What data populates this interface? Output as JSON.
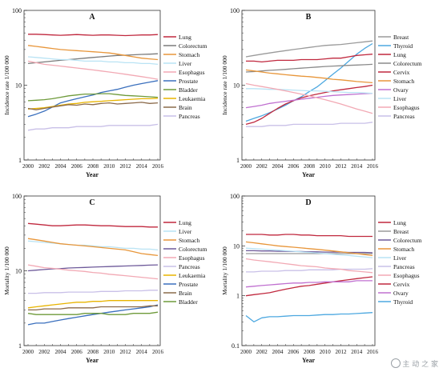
{
  "chart_data": [
    {
      "type": "line",
      "title": "A",
      "xlabel": "Year",
      "ylabel": "Incidence rate 1/100 000",
      "yscale": "log",
      "ylim": [
        1,
        100
      ],
      "x": [
        2000,
        2001,
        2002,
        2003,
        2004,
        2005,
        2006,
        2007,
        2008,
        2009,
        2010,
        2011,
        2012,
        2013,
        2014,
        2015,
        2016
      ],
      "x_ticks": [
        "2000",
        "2002",
        "2004",
        "2006",
        "2008",
        "2010",
        "2012",
        "2014",
        "2016"
      ],
      "y_ticks": [
        "1",
        "10",
        "100"
      ],
      "legend_position": "right",
      "series": [
        {
          "name": "Lung",
          "color": "#c0283e",
          "values": [
            48,
            48,
            47.5,
            47,
            46.5,
            47,
            47.5,
            47,
            46.5,
            47,
            47,
            46.5,
            46,
            46.5,
            47,
            47,
            47.5
          ]
        },
        {
          "name": "Colorectum",
          "color": "#7a7a7a",
          "values": [
            19.5,
            20,
            20.5,
            21,
            21.5,
            22,
            22.5,
            23,
            23.5,
            24,
            24.5,
            25,
            25.2,
            25.5,
            25.8,
            26,
            26.3
          ]
        },
        {
          "name": "Stomach",
          "color": "#e8963a",
          "values": [
            34,
            33,
            32,
            31,
            30,
            29.5,
            29,
            28.5,
            28,
            27.5,
            27,
            26,
            25,
            24,
            23,
            22.5,
            22
          ]
        },
        {
          "name": "Liver",
          "color": "#b9e3f4",
          "values": [
            24,
            23.5,
            23,
            22.5,
            22,
            22,
            21.5,
            21,
            21,
            21,
            20.5,
            20.5,
            20,
            20,
            19.5,
            19.5,
            19
          ]
        },
        {
          "name": "Esophagus",
          "color": "#f2a9b4",
          "values": [
            21,
            20,
            19,
            18.5,
            18,
            17.5,
            17,
            16.5,
            16,
            15.5,
            15,
            14.5,
            14,
            13.5,
            13,
            12.5,
            12
          ]
        },
        {
          "name": "Prostate",
          "color": "#3a6fbd",
          "values": [
            3.8,
            4.1,
            4.5,
            5.1,
            5.8,
            6.2,
            6.6,
            7,
            7.4,
            8,
            8.4,
            8.8,
            9.4,
            10,
            10.5,
            11,
            11.5
          ]
        },
        {
          "name": "Bladder",
          "color": "#6e9a3a",
          "values": [
            6.2,
            6.3,
            6.4,
            6.6,
            6.9,
            7.2,
            7.4,
            7.6,
            7.6,
            7.7,
            7.7,
            7.5,
            7.3,
            7.2,
            7.1,
            7,
            6.9
          ]
        },
        {
          "name": "Leukaemia",
          "color": "#e8b400",
          "values": [
            4.8,
            4.9,
            5,
            5.2,
            5.4,
            5.6,
            5.7,
            5.9,
            6,
            6.1,
            6.2,
            6.3,
            6.4,
            6.5,
            6.6,
            6.6,
            6.7
          ]
        },
        {
          "name": "Brain",
          "color": "#8b6a4a",
          "values": [
            4.9,
            4.7,
            4.9,
            5.1,
            5.3,
            5.5,
            5.4,
            5.6,
            5.5,
            5.7,
            5.8,
            5.6,
            5.7,
            5.8,
            5.9,
            5.7,
            5.8
          ]
        },
        {
          "name": "Pancreas",
          "color": "#c9c0e8",
          "values": [
            2.5,
            2.6,
            2.6,
            2.7,
            2.7,
            2.7,
            2.8,
            2.8,
            2.8,
            2.8,
            2.9,
            2.9,
            2.9,
            2.9,
            2.9,
            2.9,
            3.0
          ]
        }
      ]
    },
    {
      "type": "line",
      "title": "B",
      "xlabel": "Year",
      "ylabel": "Incidence rate 1/100 000",
      "yscale": "log",
      "ylim": [
        1,
        100
      ],
      "x": [
        2000,
        2001,
        2002,
        2003,
        2004,
        2005,
        2006,
        2007,
        2008,
        2009,
        2010,
        2011,
        2012,
        2013,
        2014,
        2015,
        2016
      ],
      "x_ticks": [
        "2000",
        "2002",
        "2004",
        "2006",
        "2008",
        "2010",
        "2012",
        "2014",
        "2016"
      ],
      "y_ticks": [
        "1",
        "10",
        "100"
      ],
      "legend_position": "right",
      "series": [
        {
          "name": "Breast",
          "color": "#9a9a9a",
          "values": [
            24,
            25,
            26,
            27,
            28,
            29,
            30,
            31,
            32,
            33,
            34,
            34.5,
            35,
            36,
            37,
            38,
            39
          ]
        },
        {
          "name": "Thyroid",
          "color": "#4da8e0",
          "values": [
            3.3,
            3.6,
            3.9,
            4.3,
            4.8,
            5.4,
            6.2,
            7,
            8.2,
            9.5,
            11.5,
            14,
            17,
            21,
            26,
            31,
            36
          ]
        },
        {
          "name": "Lung",
          "color": "#c0283e",
          "values": [
            21,
            21,
            20.5,
            21,
            21.5,
            21.5,
            21.5,
            22,
            22,
            22,
            22.5,
            23,
            23,
            24,
            25,
            25.5,
            26
          ]
        },
        {
          "name": "Colorectum",
          "color": "#8a8a8a",
          "values": [
            15,
            15.2,
            15.5,
            15.8,
            16,
            16.3,
            16.6,
            16.9,
            17.2,
            17.5,
            17.8,
            18,
            18.2,
            18.4,
            18.6,
            18.8,
            19
          ]
        },
        {
          "name": "Cervix",
          "color": "#c0283e",
          "values": [
            3,
            3.2,
            3.6,
            4.2,
            4.9,
            5.6,
            6.2,
            6.8,
            7.2,
            7.6,
            8,
            8.4,
            8.7,
            9,
            9.3,
            9.6,
            10
          ]
        },
        {
          "name": "Stomach",
          "color": "#e8963a",
          "values": [
            16,
            15.5,
            15,
            14.5,
            14.2,
            13.8,
            13.5,
            13.2,
            13,
            12.7,
            12.4,
            12,
            11.8,
            11.5,
            11.2,
            11,
            10.8
          ]
        },
        {
          "name": "Ovary",
          "color": "#c070d0",
          "values": [
            5,
            5.2,
            5.4,
            5.7,
            5.9,
            6.1,
            6.3,
            6.5,
            6.7,
            6.9,
            7.1,
            7.3,
            7.4,
            7.5,
            7.6,
            7.7,
            7.8
          ]
        },
        {
          "name": "Liver",
          "color": "#b9e3f4",
          "values": [
            9,
            9,
            8.9,
            8.8,
            8.8,
            8.7,
            8.6,
            8.5,
            8.4,
            8.4,
            8.3,
            8.2,
            8.1,
            8,
            8,
            7.9,
            7.8
          ]
        },
        {
          "name": "Esophagus",
          "color": "#f2a9b4",
          "values": [
            10.5,
            10,
            9.6,
            9.2,
            8.8,
            8.4,
            8,
            7.6,
            7.2,
            6.8,
            6.4,
            6,
            5.6,
            5.2,
            4.8,
            4.5,
            4.2
          ]
        },
        {
          "name": "Pancreas",
          "color": "#c9c0e8",
          "values": [
            2.8,
            2.8,
            2.8,
            2.9,
            2.9,
            2.9,
            3,
            3,
            3,
            3,
            3,
            3,
            3.1,
            3.1,
            3.1,
            3.1,
            3.2
          ]
        }
      ]
    },
    {
      "type": "line",
      "title": "C",
      "xlabel": "Year",
      "ylabel": "Mortality 1/100 000",
      "yscale": "log",
      "ylim": [
        1,
        100
      ],
      "x": [
        2000,
        2001,
        2002,
        2003,
        2004,
        2005,
        2006,
        2007,
        2008,
        2009,
        2010,
        2011,
        2012,
        2013,
        2014,
        2015,
        2016
      ],
      "x_ticks": [
        "2000",
        "2002",
        "2004",
        "2006",
        "2008",
        "2010",
        "2012",
        "2014",
        "2016"
      ],
      "y_ticks": [
        "1",
        "10",
        "100"
      ],
      "legend_position": "right",
      "series": [
        {
          "name": "Lung",
          "color": "#c0283e",
          "values": [
            43,
            42,
            41,
            40,
            40,
            40.5,
            41,
            41,
            40.5,
            40,
            40,
            39.5,
            39,
            39,
            39,
            38.5,
            38.5
          ]
        },
        {
          "name": "Liver",
          "color": "#b9e3f4",
          "values": [
            25,
            24.5,
            24,
            23.5,
            23,
            22.5,
            22,
            22,
            21.5,
            21,
            21,
            20.5,
            20,
            20,
            19.5,
            19.5,
            19
          ]
        },
        {
          "name": "Stomach",
          "color": "#e8963a",
          "values": [
            27,
            26,
            25,
            24,
            23,
            22.5,
            22,
            21.5,
            21,
            20.5,
            20,
            19.5,
            19,
            18,
            17,
            16.5,
            16
          ]
        },
        {
          "name": "Colorectum",
          "color": "#6e5a9a",
          "values": [
            10,
            10.2,
            10.4,
            10.6,
            10.7,
            10.9,
            11,
            11.1,
            11.2,
            11.3,
            11.4,
            11.5,
            11.6,
            11.7,
            11.8,
            11.9,
            12
          ]
        },
        {
          "name": "Esophagus",
          "color": "#f2a9b4",
          "values": [
            12,
            11.5,
            11,
            10.8,
            10.5,
            10.2,
            10,
            9.8,
            9.5,
            9.3,
            9,
            8.8,
            8.6,
            8.4,
            8.2,
            8,
            7.8
          ]
        },
        {
          "name": "Pancreas",
          "color": "#c9c0e8",
          "values": [
            5,
            5,
            5.1,
            5.1,
            5.1,
            5.2,
            5.2,
            5.2,
            5.2,
            5.3,
            5.3,
            5.3,
            5.4,
            5.4,
            5.4,
            5.5,
            5.5
          ]
        },
        {
          "name": "Leukaemia",
          "color": "#e8b400",
          "values": [
            3.2,
            3.3,
            3.4,
            3.5,
            3.6,
            3.7,
            3.8,
            3.8,
            3.9,
            3.9,
            4,
            4,
            4,
            4,
            4,
            4,
            4
          ]
        },
        {
          "name": "Prostate",
          "color": "#3a6fbd",
          "values": [
            1.9,
            2,
            2,
            2.1,
            2.2,
            2.3,
            2.4,
            2.5,
            2.6,
            2.7,
            2.8,
            2.9,
            3,
            3.1,
            3.2,
            3.3,
            3.5
          ]
        },
        {
          "name": "Brain",
          "color": "#8b6a4a",
          "values": [
            3,
            3,
            3.1,
            3.1,
            3.1,
            3.2,
            3.2,
            3.2,
            3.2,
            3.3,
            3.3,
            3.3,
            3.3,
            3.3,
            3.3,
            3.4,
            3.4
          ]
        },
        {
          "name": "Bladder",
          "color": "#6e9a3a",
          "values": [
            2.7,
            2.6,
            2.6,
            2.6,
            2.6,
            2.6,
            2.6,
            2.7,
            2.7,
            2.7,
            2.6,
            2.6,
            2.6,
            2.7,
            2.7,
            2.7,
            2.8
          ]
        }
      ]
    },
    {
      "type": "line",
      "title": "D",
      "xlabel": "Year",
      "ylabel": "Mortality 1/100 000",
      "yscale": "log",
      "ylim": [
        0.1,
        100
      ],
      "x": [
        2000,
        2001,
        2002,
        2003,
        2004,
        2005,
        2006,
        2007,
        2008,
        2009,
        2010,
        2011,
        2012,
        2013,
        2014,
        2015,
        2016
      ],
      "x_ticks": [
        "2000",
        "2002",
        "2004",
        "2006",
        "2008",
        "2010",
        "2012",
        "2014",
        "2016"
      ],
      "y_ticks": [
        "0.1",
        "1",
        "10",
        "100"
      ],
      "legend_position": "right",
      "series": [
        {
          "name": "Lung",
          "color": "#c0283e",
          "values": [
            17,
            17,
            17,
            16.5,
            16.5,
            17,
            17,
            16.5,
            16.5,
            16,
            16,
            16,
            16,
            15.5,
            15.5,
            15.5,
            15.5
          ]
        },
        {
          "name": "Breast",
          "color": "#9a9a9a",
          "values": [
            7,
            7,
            7,
            7,
            7,
            7,
            7,
            7,
            7,
            7,
            7,
            7,
            7,
            7,
            7,
            7,
            7
          ]
        },
        {
          "name": "Colorectum",
          "color": "#6e5a9a",
          "values": [
            8,
            8,
            7.9,
            7.9,
            7.8,
            7.8,
            7.7,
            7.7,
            7.6,
            7.6,
            7.5,
            7.5,
            7.5,
            7.4,
            7.4,
            7.4,
            7.3
          ]
        },
        {
          "name": "Stomach",
          "color": "#e8963a",
          "values": [
            12,
            11.5,
            11,
            10.5,
            10,
            9.7,
            9.4,
            9.1,
            8.8,
            8.5,
            8.2,
            7.9,
            7.6,
            7.3,
            7,
            6.7,
            6.4
          ]
        },
        {
          "name": "Liver",
          "color": "#b9e3f4",
          "values": [
            9,
            8.8,
            8.6,
            8.4,
            8.2,
            8,
            7.8,
            7.6,
            7.4,
            7.2,
            7,
            6.8,
            6.6,
            6.4,
            6.2,
            6,
            5.8
          ]
        },
        {
          "name": "Pancreas",
          "color": "#c9c0e8",
          "values": [
            3,
            3,
            3.1,
            3.1,
            3.1,
            3.2,
            3.2,
            3.2,
            3.3,
            3.3,
            3.3,
            3.3,
            3.4,
            3.4,
            3.4,
            3.4,
            3.5
          ]
        },
        {
          "name": "Esophagus",
          "color": "#f2a9b4",
          "values": [
            5.5,
            5.2,
            5,
            4.8,
            4.6,
            4.4,
            4.2,
            4,
            3.9,
            3.8,
            3.6,
            3.5,
            3.4,
            3.2,
            3.1,
            3,
            2.9
          ]
        },
        {
          "name": "Cervix",
          "color": "#c0283e",
          "values": [
            1,
            1.05,
            1.1,
            1.15,
            1.25,
            1.35,
            1.45,
            1.55,
            1.6,
            1.7,
            1.8,
            1.9,
            2,
            2.1,
            2.2,
            2.3,
            2.4
          ]
        },
        {
          "name": "Ovary",
          "color": "#c070d0",
          "values": [
            1.5,
            1.55,
            1.6,
            1.65,
            1.7,
            1.75,
            1.8,
            1.8,
            1.85,
            1.85,
            1.9,
            1.9,
            1.9,
            1.9,
            2,
            2,
            2
          ]
        },
        {
          "name": "Thyroid",
          "color": "#4da8e0",
          "values": [
            0.4,
            0.3,
            0.36,
            0.38,
            0.38,
            0.39,
            0.4,
            0.4,
            0.4,
            0.41,
            0.42,
            0.42,
            0.43,
            0.43,
            0.44,
            0.45,
            0.46
          ]
        }
      ]
    }
  ],
  "watermark": "主 动 之 家"
}
